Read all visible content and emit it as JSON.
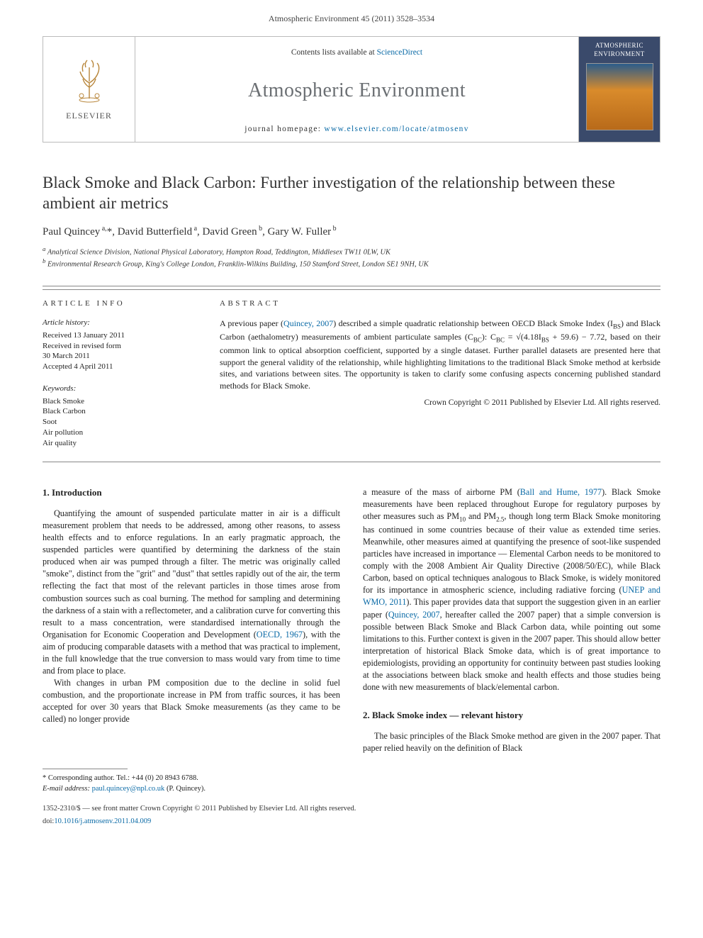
{
  "header": {
    "running_head": "Atmospheric Environment 45 (2011) 3528–3534"
  },
  "masthead": {
    "publisher_label": "ELSEVIER",
    "contents_text": "Contents lists available at ",
    "contents_link": "ScienceDirect",
    "journal_name": "Atmospheric Environment",
    "homepage_prefix": "journal homepage: ",
    "homepage_url": "www.elsevier.com/locate/atmosenv",
    "cover_title": "ATMOSPHERIC ENVIRONMENT"
  },
  "article": {
    "title": "Black Smoke and Black Carbon: Further investigation of the relationship between these ambient air metrics",
    "authors_html": "Paul Quincey <sup>a,</sup>*, David Butterfield <sup>a</sup>, David Green <sup>b</sup>, Gary W. Fuller <sup>b</sup>",
    "affiliations": [
      "a Analytical Science Division, National Physical Laboratory, Hampton Road, Teddington, Middlesex TW11 0LW, UK",
      "b Environmental Research Group, King's College London, Franklin-Wilkins Building, 150 Stamford Street, London SE1 9NH, UK"
    ]
  },
  "info": {
    "heading": "ARTICLE INFO",
    "history_title": "Article history:",
    "history_lines": [
      "Received 13 January 2011",
      "Received in revised form",
      "30 March 2011",
      "Accepted 4 April 2011"
    ],
    "keywords_title": "Keywords:",
    "keywords": [
      "Black Smoke",
      "Black Carbon",
      "Soot",
      "Air pollution",
      "Air quality"
    ]
  },
  "abstract": {
    "heading": "ABSTRACT",
    "text_before_link": "A previous paper (",
    "link1": "Quincey, 2007",
    "text_after_link": ") described a simple quadratic relationship between OECD Black Smoke Index (I",
    "sub1": "BS",
    "text2": ") and Black Carbon (aethalometry) measurements of ambient particulate samples (C",
    "sub2": "BC",
    "text3": "): C",
    "sub3": "BC",
    "text4": " = √(4.18I",
    "sub4": "BS",
    "text5": " + 59.6) − 7.72, based on their common link to optical absorption coefficient, supported by a single dataset. Further parallel datasets are presented here that support the general validity of the relationship, while highlighting limitations to the traditional Black Smoke method at kerbside sites, and variations between sites. The opportunity is taken to clarify some confusing aspects concerning published standard methods for Black Smoke.",
    "copyright": "Crown Copyright © 2011 Published by Elsevier Ltd. All rights reserved."
  },
  "body": {
    "left": {
      "heading": "1. Introduction",
      "p1": "Quantifying the amount of suspended particulate matter in air is a difficult measurement problem that needs to be addressed, among other reasons, to assess health effects and to enforce regulations. In an early pragmatic approach, the suspended particles were quantified by determining the darkness of the stain produced when air was pumped through a filter. The metric was originally called \"smoke\", distinct from the \"grit\" and \"dust\" that settles rapidly out of the air, the term reflecting the fact that most of the relevant particles in those times arose from combustion sources such as coal burning. The method for sampling and determining the darkness of a stain with a reflectometer, and a calibration curve for converting this result to a mass concentration, were standardised internationally through the Organisation for Economic Cooperation and Development (",
      "p1_link": "OECD, 1967",
      "p1_after": "), with the aim of producing comparable datasets with a method that was practical to implement, in the full knowledge that the true conversion to mass would vary from time to time and from place to place.",
      "p2": "With changes in urban PM composition due to the decline in solid fuel combustion, and the proportionate increase in PM from traffic sources, it has been accepted for over 30 years that Black Smoke measurements (as they came to be called) no longer provide"
    },
    "right": {
      "p1_before": "a measure of the mass of airborne PM (",
      "p1_link1": "Ball and Hume, 1977",
      "p1_mid1": "). Black Smoke measurements have been replaced throughout Europe for regulatory purposes by other measures such as PM",
      "p1_sub1": "10",
      "p1_mid2": " and PM",
      "p1_sub2": "2.5",
      "p1_mid3": ", though long term Black Smoke monitoring has continued in some countries because of their value as extended time series. Meanwhile, other measures aimed at quantifying the presence of soot-like suspended particles have increased in importance — Elemental Carbon needs to be monitored to comply with the 2008 Ambient Air Quality Directive (2008/50/EC), while Black Carbon, based on optical techniques analogous to Black Smoke, is widely monitored for its importance in atmospheric science, including radiative forcing (",
      "p1_link2": "UNEP and WMO, 2011",
      "p1_mid4": "). This paper provides data that support the suggestion given in an earlier paper (",
      "p1_link3": "Quincey, 2007",
      "p1_after": ", hereafter called the 2007 paper) that a simple conversion is possible between Black Smoke and Black Carbon data, while pointing out some limitations to this. Further context is given in the 2007 paper. This should allow better interpretation of historical Black Smoke data, which is of great importance to epidemiologists, providing an opportunity for continuity between past studies looking at the associations between black smoke and health effects and those studies being done with new measurements of black/elemental carbon.",
      "heading2": "2. Black Smoke index — relevant history",
      "p2": "The basic principles of the Black Smoke method are given in the 2007 paper. That paper relied heavily on the definition of Black"
    }
  },
  "footnotes": {
    "corr": "* Corresponding author. Tel.: +44 (0) 20 8943 6788.",
    "email_label": "E-mail address: ",
    "email": "paul.quincey@npl.co.uk",
    "email_suffix": " (P. Quincey)."
  },
  "footer": {
    "line1": "1352-2310/$ — see front matter Crown Copyright © 2011 Published by Elsevier Ltd. All rights reserved.",
    "doi_prefix": "doi:",
    "doi": "10.1016/j.atmosenv.2011.04.009"
  },
  "colors": {
    "link": "#0a6aa6",
    "journal_name": "#6b6f73",
    "rule": "#888888",
    "cover_bg": "#3a4a6b"
  }
}
